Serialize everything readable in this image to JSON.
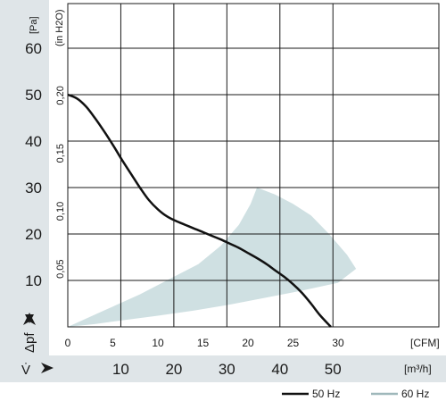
{
  "chart_data": {
    "type": "line",
    "x_unit_primary": "[CFM]",
    "x_unit_secondary": "[m³/h]",
    "y_unit_primary": "[Pa]",
    "y_unit_secondary": "(in H2O)",
    "y_symbol": "Δpf",
    "x_symbol": "V̇",
    "xlim": [
      0,
      32
    ],
    "ylim": [
      0,
      70
    ],
    "x_ticks_cfm": [
      "0",
      "5",
      "10",
      "15",
      "20",
      "25",
      "30"
    ],
    "x_ticks_cfm_values": [
      0,
      5,
      10,
      15,
      20,
      25,
      30
    ],
    "x_ticks_m3h": [
      "10",
      "20",
      "30",
      "40",
      "50"
    ],
    "x_ticks_m3h_values": [
      10,
      20,
      30,
      40,
      50
    ],
    "y_ticks_pa": [
      "10",
      "20",
      "30",
      "40",
      "50",
      "60"
    ],
    "y_ticks_pa_values": [
      10,
      20,
      30,
      40,
      50,
      60
    ],
    "y_ticks_inh2o": [
      "0,05",
      "0,10",
      "0,15",
      "0,20"
    ],
    "y_ticks_inh2o_values": [
      0.05,
      0.1,
      0.15,
      0.2
    ],
    "series": [
      {
        "name": "50 Hz",
        "color": "#111111",
        "x": [
          0,
          1,
          2,
          3,
          4,
          5,
          6,
          7,
          8,
          9,
          10,
          11,
          12,
          13,
          14,
          15,
          16,
          17,
          18,
          19,
          20,
          21,
          22,
          23,
          24,
          25,
          26,
          27,
          28,
          29.2
        ],
        "y": [
          50,
          49.2,
          47.5,
          45,
          42.2,
          39.2,
          36,
          33,
          30,
          27.3,
          25.3,
          23.8,
          22.8,
          22,
          21.2,
          20.4,
          19.6,
          18.8,
          17.9,
          17,
          15.9,
          14.8,
          13.6,
          12.2,
          10.8,
          9.2,
          7.3,
          5,
          2.5,
          0
        ]
      }
    ],
    "operating_area": {
      "name": "60 Hz",
      "color": "#cfe0e2",
      "x": [
        0,
        4,
        8,
        11.5,
        14.5,
        17,
        19,
        20.3,
        21,
        23,
        25,
        27,
        29,
        31,
        32,
        30,
        26,
        22,
        18,
        14,
        10,
        6,
        3,
        0
      ],
      "y": [
        0,
        3.5,
        7,
        10.5,
        13.5,
        17.5,
        22,
        26.5,
        30,
        28.5,
        26.5,
        24,
        20,
        15.5,
        12.5,
        9.5,
        7.8,
        6.3,
        4.8,
        3.5,
        2.4,
        1.4,
        0.6,
        0
      ]
    },
    "grid": true,
    "legend": "bottom-right",
    "legend_entries": [
      "50 Hz",
      "60 Hz"
    ]
  }
}
